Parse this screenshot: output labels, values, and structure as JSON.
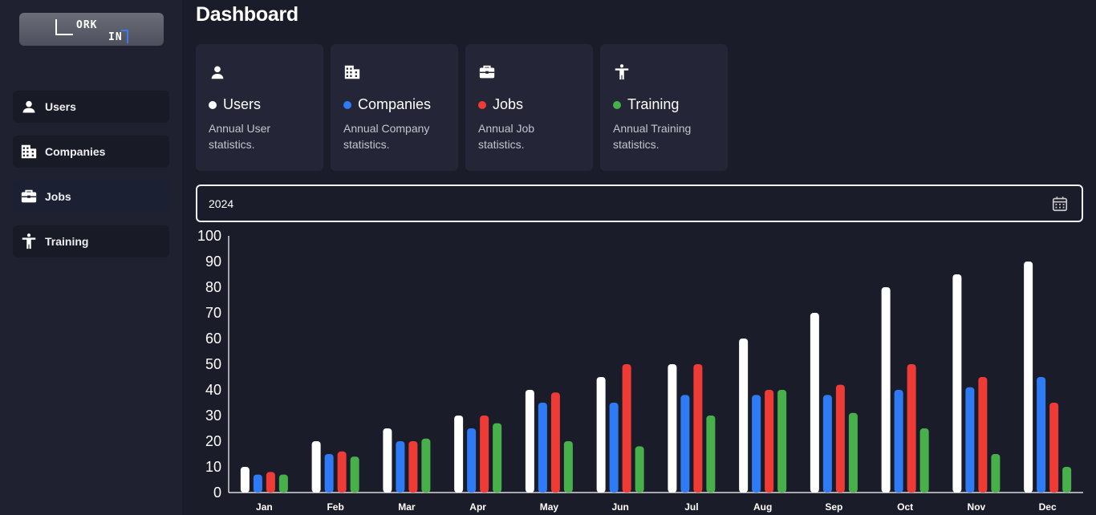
{
  "brand": {
    "logo_text_top": "ORK",
    "logo_text_bottom": "IN"
  },
  "sidebar": {
    "items": [
      {
        "label": "Users",
        "icon": "person-icon"
      },
      {
        "label": "Companies",
        "icon": "building-icon"
      },
      {
        "label": "Jobs",
        "icon": "briefcase-icon"
      },
      {
        "label": "Training",
        "icon": "accessibility-icon"
      }
    ],
    "active_index": 2
  },
  "page": {
    "title": "Dashboard"
  },
  "cards": [
    {
      "name": "Users",
      "desc": "Annual User statistics.",
      "dot_color": "#ffffff",
      "icon": "person-icon"
    },
    {
      "name": "Companies",
      "desc": "Annual Company statistics.",
      "dot_color": "#2f7bf5",
      "icon": "building-icon"
    },
    {
      "name": "Jobs",
      "desc": "Annual Job statistics.",
      "dot_color": "#ee3b36",
      "icon": "briefcase-icon"
    },
    {
      "name": "Training",
      "desc": "Annual Training statistics.",
      "dot_color": "#48b04a",
      "icon": "accessibility-icon"
    }
  ],
  "year_picker": {
    "value": "2024",
    "icon": "calendar-icon"
  },
  "chart_data": {
    "type": "bar",
    "categories": [
      "Jan",
      "Feb",
      "Mar",
      "Apr",
      "May",
      "Jun",
      "Jul",
      "Aug",
      "Sep",
      "Oct",
      "Nov",
      "Dec"
    ],
    "ylim": [
      0,
      100
    ],
    "yticks": [
      0,
      10,
      20,
      30,
      40,
      50,
      60,
      70,
      80,
      90,
      100
    ],
    "grid": false,
    "legend": "none",
    "series": [
      {
        "color": "#ffffff",
        "values": [
          10,
          20,
          25,
          30,
          40,
          45,
          50,
          60,
          70,
          80,
          85,
          90
        ]
      },
      {
        "color": "#2f7bf5",
        "values": [
          7,
          15,
          20,
          25,
          35,
          35,
          38,
          38,
          38,
          40,
          41,
          45
        ]
      },
      {
        "color": "#ee3b36",
        "values": [
          8,
          16,
          20,
          30,
          39,
          50,
          50,
          40,
          42,
          50,
          45,
          35
        ]
      },
      {
        "color": "#48b04a",
        "values": [
          7,
          14,
          21,
          27,
          20,
          18,
          30,
          40,
          31,
          25,
          15,
          10
        ]
      }
    ]
  }
}
